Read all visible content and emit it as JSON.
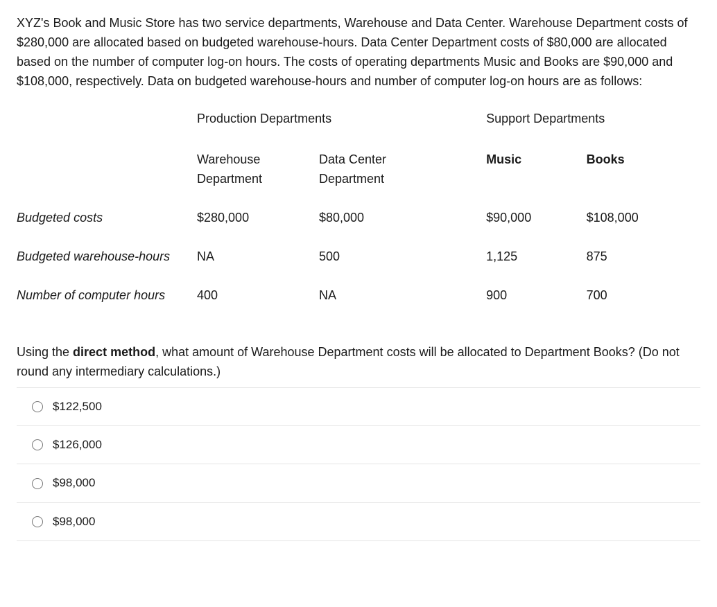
{
  "intro": "XYZ's Book and Music Store has two service departments, Warehouse and Data Center. Warehouse Department costs of $280,000 are allocated based on budgeted warehouse-hours. Data Center Department costs of $80,000 are allocated based on the number of computer log-on hours. The costs of operating departments Music and Books are $90,000 and $108,000, respectively. Data on budgeted warehouse-hours and number of computer log-on hours are as follows:",
  "table": {
    "group_headers": {
      "production": "Production Departments",
      "support": "Support Departments"
    },
    "col_headers": {
      "warehouse_l1": "Warehouse",
      "warehouse_l2": "Department",
      "datacenter_l1": "Data Center",
      "datacenter_l2": "Department",
      "music": "Music",
      "books": "Books"
    },
    "rows": [
      {
        "label": "Budgeted costs",
        "warehouse": "$280,000",
        "datacenter": "$80,000",
        "music": "$90,000",
        "books": "$108,000"
      },
      {
        "label": "Budgeted warehouse-hours",
        "warehouse": "NA",
        "datacenter": "500",
        "music": "1,125",
        "books": "875"
      },
      {
        "label": "Number of computer hours",
        "warehouse": "400",
        "datacenter": "NA",
        "music": "900",
        "books": "700"
      }
    ]
  },
  "followup": {
    "pre": "Using the ",
    "bold": "direct method",
    "post": ", what amount of Warehouse Department costs will be allocated to Department Books? (Do not round any intermediary calculations.)"
  },
  "options": [
    "$122,500",
    "$126,000",
    "$98,000",
    "$98,000"
  ]
}
